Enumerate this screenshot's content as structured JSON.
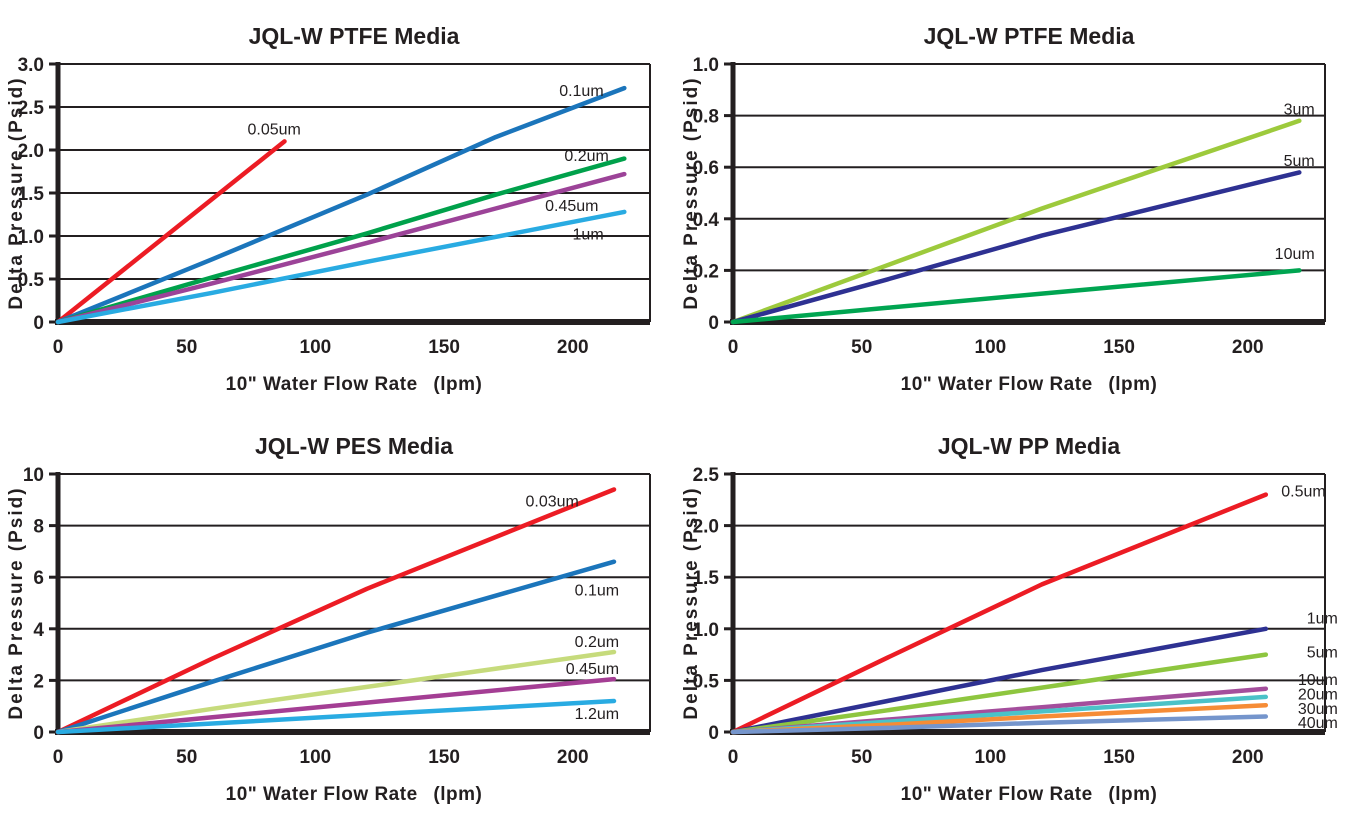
{
  "page": {
    "background": "#ffffff",
    "ink": "#231F20"
  },
  "chart_data": [
    {
      "type": "line",
      "title": "JQL-W PTFE Media",
      "xlabel": "10\" Water Flow Rate  (lpm)",
      "ylabel": "Delta Pressure (Psid)",
      "xlim": [
        0,
        230
      ],
      "ylim": [
        0,
        3
      ],
      "grid": true,
      "legend": "inline-labels",
      "x_ticks": [
        {
          "v": 0,
          "t": "0"
        },
        {
          "v": 50,
          "t": "50"
        },
        {
          "v": 100,
          "t": "100"
        },
        {
          "v": 150,
          "t": "150"
        },
        {
          "v": 200,
          "t": "200"
        }
      ],
      "y_ticks": [
        {
          "v": 0,
          "t": "0"
        },
        {
          "v": 0.5,
          "t": "0.5"
        },
        {
          "v": 1,
          "t": "1.0"
        },
        {
          "v": 1.5,
          "t": "1.5"
        },
        {
          "v": 2,
          "t": "2.0"
        },
        {
          "v": 2.5,
          "t": "2.5"
        },
        {
          "v": 3,
          "t": "3.0"
        }
      ],
      "series": [
        {
          "name": "0.05um",
          "color": "#EC1C24",
          "points": [
            [
              0,
              0
            ],
            [
              88,
              2.1
            ]
          ],
          "label": {
            "x": 84,
            "y": 2.18,
            "anchor": "middle"
          }
        },
        {
          "name": "0.1um",
          "color": "#1B75BB",
          "points": [
            [
              0,
              0
            ],
            [
              60,
              0.73
            ],
            [
              120,
              1.48
            ],
            [
              170,
              2.15
            ],
            [
              220,
              2.72
            ]
          ],
          "label": {
            "x": 212,
            "y": 2.63,
            "anchor": "end"
          }
        },
        {
          "name": "0.2um",
          "color": "#00A14B",
          "points": [
            [
              0,
              0
            ],
            [
              60,
              0.52
            ],
            [
              120,
              1.03
            ],
            [
              170,
              1.48
            ],
            [
              220,
              1.9
            ]
          ],
          "label": {
            "x": 214,
            "y": 1.87,
            "anchor": "end"
          }
        },
        {
          "name": "0.45um",
          "color": "#9C4398",
          "points": [
            [
              0,
              0
            ],
            [
              60,
              0.45
            ],
            [
              120,
              0.92
            ],
            [
              170,
              1.32
            ],
            [
              220,
              1.72
            ]
          ],
          "label": {
            "x": 210,
            "y": 1.29,
            "anchor": "end"
          }
        },
        {
          "name": "1um",
          "color": "#29ABE2",
          "points": [
            [
              0,
              0
            ],
            [
              60,
              0.34
            ],
            [
              120,
              0.7
            ],
            [
              170,
              0.99
            ],
            [
              220,
              1.28
            ]
          ],
          "label": {
            "x": 212,
            "y": 0.96,
            "anchor": "end"
          }
        }
      ]
    },
    {
      "type": "line",
      "title": "JQL-W PTFE Media",
      "xlabel": "10\" Water Flow Rate  (lpm)",
      "ylabel": "Delta Pressure (Psid)",
      "xlim": [
        0,
        230
      ],
      "ylim": [
        0,
        1
      ],
      "grid": true,
      "legend": "inline-labels",
      "x_ticks": [
        {
          "v": 0,
          "t": "0"
        },
        {
          "v": 50,
          "t": "50"
        },
        {
          "v": 100,
          "t": "100"
        },
        {
          "v": 150,
          "t": "150"
        },
        {
          "v": 200,
          "t": "200"
        }
      ],
      "y_ticks": [
        {
          "v": 0,
          "t": "0"
        },
        {
          "v": 0.2,
          "t": "0.2"
        },
        {
          "v": 0.4,
          "t": "0.4"
        },
        {
          "v": 0.6,
          "t": "0.6"
        },
        {
          "v": 0.8,
          "t": "0.8"
        },
        {
          "v": 1,
          "t": "1.0"
        }
      ],
      "series": [
        {
          "name": "3um",
          "color": "#9DCA3C",
          "points": [
            [
              0,
              0
            ],
            [
              60,
              0.22
            ],
            [
              120,
              0.44
            ],
            [
              220,
              0.78
            ]
          ],
          "label": {
            "x": 226,
            "y": 0.805,
            "anchor": "end"
          }
        },
        {
          "name": "5um",
          "color": "#2E3192",
          "points": [
            [
              0,
              0
            ],
            [
              60,
              0.165
            ],
            [
              120,
              0.335
            ],
            [
              220,
              0.58
            ]
          ],
          "label": {
            "x": 226,
            "y": 0.605,
            "anchor": "end"
          }
        },
        {
          "name": "10um",
          "color": "#00A551",
          "points": [
            [
              0,
              0
            ],
            [
              60,
              0.055
            ],
            [
              120,
              0.11
            ],
            [
              220,
              0.2
            ]
          ],
          "label": {
            "x": 226,
            "y": 0.245,
            "anchor": "end"
          }
        }
      ]
    },
    {
      "type": "line",
      "title": "JQL-W PES Media",
      "xlabel": "10\" Water Flow Rate  (lpm)",
      "ylabel": "Delta Pressure (Psid)",
      "xlim": [
        0,
        230
      ],
      "ylim": [
        0,
        10
      ],
      "grid": true,
      "legend": "inline-labels",
      "x_ticks": [
        {
          "v": 0,
          "t": "0"
        },
        {
          "v": 50,
          "t": "50"
        },
        {
          "v": 100,
          "t": "100"
        },
        {
          "v": 150,
          "t": "150"
        },
        {
          "v": 200,
          "t": "200"
        }
      ],
      "y_ticks": [
        {
          "v": 0,
          "t": "0"
        },
        {
          "v": 2,
          "t": "2"
        },
        {
          "v": 4,
          "t": "4"
        },
        {
          "v": 6,
          "t": "6"
        },
        {
          "v": 8,
          "t": "8"
        },
        {
          "v": 10,
          "t": "10"
        }
      ],
      "series": [
        {
          "name": "0.03um",
          "color": "#EC1C24",
          "points": [
            [
              0,
              0
            ],
            [
              60,
              2.85
            ],
            [
              120,
              5.55
            ],
            [
              216,
              9.4
            ]
          ],
          "label": {
            "x": 192,
            "y": 8.75,
            "anchor": "middle"
          }
        },
        {
          "name": "0.1um",
          "color": "#1B75BB",
          "points": [
            [
              0,
              0
            ],
            [
              60,
              1.95
            ],
            [
              120,
              3.85
            ],
            [
              216,
              6.6
            ]
          ],
          "label": {
            "x": 218,
            "y": 5.3,
            "anchor": "end"
          }
        },
        {
          "name": "0.2um",
          "color": "#C6DB7C",
          "points": [
            [
              0,
              0
            ],
            [
              60,
              0.9
            ],
            [
              120,
              1.75
            ],
            [
              216,
              3.1
            ]
          ],
          "label": {
            "x": 218,
            "y": 3.29,
            "anchor": "end"
          }
        },
        {
          "name": "0.45um",
          "color": "#A43E94",
          "points": [
            [
              0,
              0
            ],
            [
              60,
              0.57
            ],
            [
              120,
              1.14
            ],
            [
              216,
              2.05
            ]
          ],
          "label": {
            "x": 218,
            "y": 2.25,
            "anchor": "end"
          }
        },
        {
          "name": "1.2um",
          "color": "#29ABE2",
          "points": [
            [
              0,
              0
            ],
            [
              60,
              0.33
            ],
            [
              120,
              0.67
            ],
            [
              216,
              1.2
            ]
          ],
          "label": {
            "x": 218,
            "y": 0.5,
            "anchor": "end"
          }
        }
      ]
    },
    {
      "type": "line",
      "title": "JQL-W PP Media",
      "xlabel": "10\" Water Flow Rate  (lpm)",
      "ylabel": "Delta Pressure (Psid)",
      "xlim": [
        0,
        230
      ],
      "ylim": [
        0,
        2.5
      ],
      "grid": true,
      "legend": "inline-labels",
      "x_ticks": [
        {
          "v": 0,
          "t": "0"
        },
        {
          "v": 50,
          "t": "50"
        },
        {
          "v": 100,
          "t": "100"
        },
        {
          "v": 150,
          "t": "150"
        },
        {
          "v": 200,
          "t": "200"
        }
      ],
      "y_ticks": [
        {
          "v": 0,
          "t": "0"
        },
        {
          "v": 0.5,
          "t": "0.5"
        },
        {
          "v": 1,
          "t": "1.0"
        },
        {
          "v": 1.5,
          "t": "1.5"
        },
        {
          "v": 2,
          "t": "2.0"
        },
        {
          "v": 2.5,
          "t": "2.5"
        }
      ],
      "series": [
        {
          "name": "0.5um",
          "color": "#EC1C24",
          "points": [
            [
              0,
              0
            ],
            [
              60,
              0.72
            ],
            [
              120,
              1.43
            ],
            [
              207,
              2.3
            ]
          ],
          "label": {
            "x": 213,
            "y": 2.28,
            "anchor": "start"
          }
        },
        {
          "name": "1um",
          "color": "#2E3192",
          "points": [
            [
              0,
              0
            ],
            [
              60,
              0.3
            ],
            [
              120,
              0.6
            ],
            [
              207,
              1.0
            ]
          ],
          "label": {
            "x": 235,
            "y": 1.05,
            "anchor": "end"
          }
        },
        {
          "name": "5um",
          "color": "#8EC63F",
          "points": [
            [
              0,
              0
            ],
            [
              60,
              0.21
            ],
            [
              120,
              0.43
            ],
            [
              207,
              0.75
            ]
          ],
          "label": {
            "x": 235,
            "y": 0.72,
            "anchor": "end"
          }
        },
        {
          "name": "10um",
          "color": "#A44E9C",
          "points": [
            [
              0,
              0
            ],
            [
              60,
              0.12
            ],
            [
              120,
              0.24
            ],
            [
              207,
              0.42
            ]
          ],
          "label": {
            "x": 235,
            "y": 0.455,
            "anchor": "end"
          }
        },
        {
          "name": "20um",
          "color": "#4BC2C8",
          "points": [
            [
              0,
              0
            ],
            [
              60,
              0.1
            ],
            [
              120,
              0.2
            ],
            [
              207,
              0.34
            ]
          ],
          "label": {
            "x": 235,
            "y": 0.315,
            "anchor": "end"
          }
        },
        {
          "name": "30um",
          "color": "#F68C36",
          "points": [
            [
              0,
              0
            ],
            [
              60,
              0.07
            ],
            [
              120,
              0.15
            ],
            [
              207,
              0.26
            ]
          ],
          "label": {
            "x": 235,
            "y": 0.175,
            "anchor": "end"
          }
        },
        {
          "name": "40um",
          "color": "#7595CC",
          "points": [
            [
              0,
              0
            ],
            [
              60,
              0.04
            ],
            [
              120,
              0.09
            ],
            [
              207,
              0.15
            ]
          ],
          "label": {
            "x": 235,
            "y": 0.04,
            "anchor": "end"
          }
        }
      ]
    }
  ]
}
